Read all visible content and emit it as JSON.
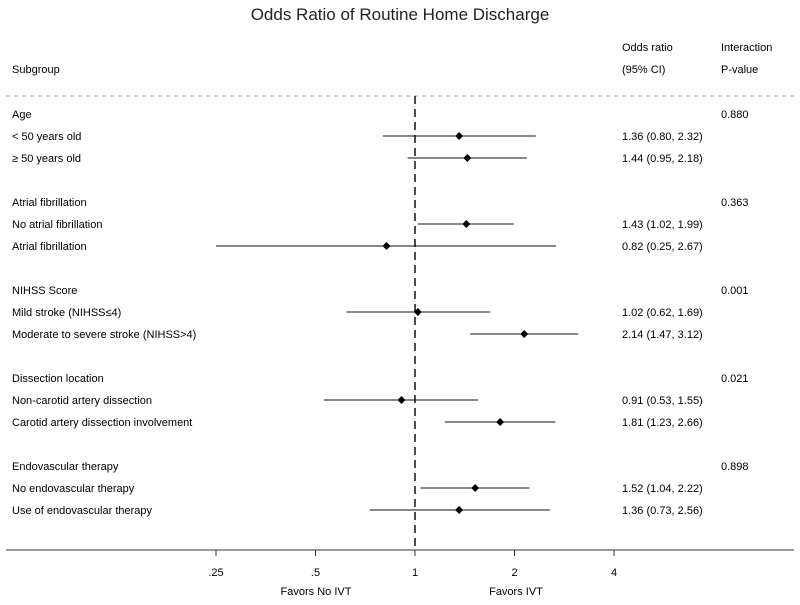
{
  "chart_data": {
    "type": "forest",
    "title": "Odds Ratio of Routine Home Discharge",
    "columns": {
      "subgroup": "Subgroup",
      "odds_ratio_line1": "Odds ratio",
      "odds_ratio_line2": "(95% CI)",
      "interaction_line1": "Interaction",
      "interaction_line2": "P-value"
    },
    "x_scale": "log",
    "xlim": [
      0.25,
      4
    ],
    "x_ticks": [
      {
        "value": 0.25,
        "label": ".25"
      },
      {
        "value": 0.5,
        "label": ".5"
      },
      {
        "value": 1,
        "label": "1"
      },
      {
        "value": 2,
        "label": "2"
      },
      {
        "value": 4,
        "label": "4"
      }
    ],
    "reference_line": 1,
    "favors_left": "Favors No IVT",
    "favors_right": "Favors IVT",
    "groups": [
      {
        "name": "Age",
        "p_value": "0.880",
        "rows": [
          {
            "label": "< 50 years old",
            "or": 1.36,
            "lo": 0.8,
            "hi": 2.32,
            "text": "1.36 (0.80, 2.32)"
          },
          {
            "label": "≥ 50 years old",
            "or": 1.44,
            "lo": 0.95,
            "hi": 2.18,
            "text": "1.44 (0.95, 2.18)"
          }
        ]
      },
      {
        "name": "Atrial fibrillation",
        "p_value": "0.363",
        "rows": [
          {
            "label": "No atrial fibrillation",
            "or": 1.43,
            "lo": 1.02,
            "hi": 1.99,
            "text": "1.43 (1.02, 1.99)"
          },
          {
            "label": "Atrial fibrillation",
            "or": 0.82,
            "lo": 0.25,
            "hi": 2.67,
            "text": "0.82 (0.25, 2.67)"
          }
        ]
      },
      {
        "name": "NIHSS Score",
        "p_value": "0.001",
        "rows": [
          {
            "label": "Mild stroke (NIHSS≤4)",
            "or": 1.02,
            "lo": 0.62,
            "hi": 1.69,
            "text": "1.02 (0.62, 1.69)"
          },
          {
            "label": "Moderate to severe stroke (NIHSS>4)",
            "or": 2.14,
            "lo": 1.47,
            "hi": 3.12,
            "text": "2.14 (1.47, 3.12)"
          }
        ]
      },
      {
        "name": "Dissection location",
        "p_value": "0.021",
        "rows": [
          {
            "label": "Non-carotid artery dissection",
            "or": 0.91,
            "lo": 0.53,
            "hi": 1.55,
            "text": "0.91 (0.53, 1.55)"
          },
          {
            "label": "Carotid artery dissection involvement",
            "or": 1.81,
            "lo": 1.23,
            "hi": 2.66,
            "text": "1.81 (1.23, 2.66)"
          }
        ]
      },
      {
        "name": "Endovascular therapy",
        "p_value": "0.898",
        "rows": [
          {
            "label": "No endovascular therapy",
            "or": 1.52,
            "lo": 1.04,
            "hi": 2.22,
            "text": "1.52 (1.04, 2.22)"
          },
          {
            "label": "Use of endovascular therapy",
            "or": 1.36,
            "lo": 0.73,
            "hi": 2.56,
            "text": "1.36 (0.73, 2.56)"
          }
        ]
      }
    ]
  }
}
